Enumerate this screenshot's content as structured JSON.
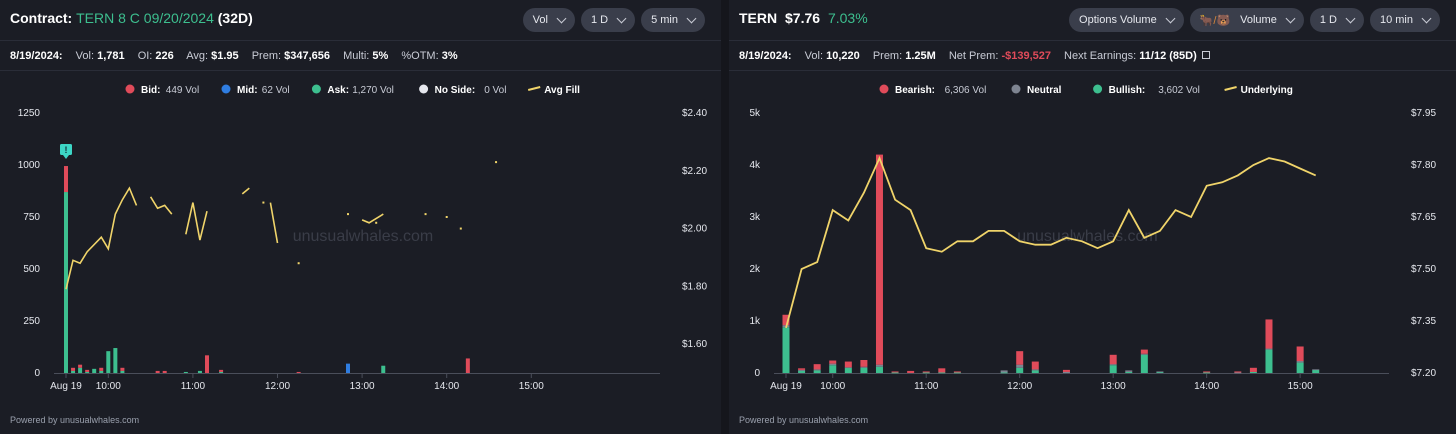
{
  "left": {
    "title_prefix": "Contract:",
    "title_contract": "TERN 8 C 09/20/2024",
    "title_dte": "(32D)",
    "buttons": [
      "Vol",
      "1 D",
      "5 min"
    ],
    "stats": {
      "date": "8/19/2024:",
      "vol_label": "Vol:",
      "vol": "1,781",
      "oi_label": "OI:",
      "oi": "226",
      "avg_label": "Avg:",
      "avg": "$1.95",
      "prem_label": "Prem:",
      "prem": "$347,656",
      "multi_label": "Multi:",
      "multi": "5%",
      "otm_label": "%OTM:",
      "otm": "3%"
    },
    "powered": "Powered by unusualwhales.com",
    "watermark": "unusualwhales.com"
  },
  "right": {
    "title_ticker": "TERN",
    "title_price": "$7.76",
    "title_change": "7.03%",
    "buttons": [
      {
        "label": "Options Volume",
        "icon": ""
      },
      {
        "label": "Volume",
        "icon": "bull-bear-icon",
        "icon_text": "🐂/🐻"
      },
      {
        "label": "1 D",
        "icon": ""
      },
      {
        "label": "10 min",
        "icon": ""
      }
    ],
    "stats": {
      "date": "8/19/2024:",
      "vol_label": "Vol:",
      "vol": "10,220",
      "prem_label": "Prem:",
      "prem": "1.25M",
      "netprem_label": "Net Prem:",
      "netprem": "-$139,527",
      "earnings_label": "Next Earnings:",
      "earnings": "11/12 (85D)"
    },
    "powered": "Powered by unusualwhales.com",
    "watermark": "unusualwhales.com"
  },
  "chart_data": [
    {
      "type": "bar",
      "stacked": true,
      "legend": [
        {
          "name": "Bid",
          "value": "449 Vol",
          "color": "#e04b5a"
        },
        {
          "name": "Mid",
          "value": "62 Vol",
          "color": "#2f7de1"
        },
        {
          "name": "Ask",
          "value": "1,270 Vol",
          "color": "#3dbf8f"
        },
        {
          "name": "No Side",
          "value": "0 Vol",
          "color": "#e6e8ee"
        },
        {
          "name": "Avg Fill",
          "value": "",
          "color": "#f0d46a",
          "line": true
        }
      ],
      "x_ticks": [
        "Aug 19",
        "10:00",
        "11:00",
        "12:00",
        "13:00",
        "14:00",
        "15:00"
      ],
      "x_tick_minutes": [
        0,
        30,
        90,
        150,
        210,
        270,
        330
      ],
      "y_left": {
        "ticks": [
          "0",
          "250",
          "500",
          "750",
          "1000",
          "1250"
        ],
        "range": [
          0,
          1250
        ]
      },
      "y_right": {
        "ticks": [
          "$1.60",
          "$1.80",
          "$2.00",
          "$2.20",
          "$2.40"
        ],
        "range": [
          1.5,
          2.4
        ]
      },
      "bar_series": [
        "Ask",
        "Mid",
        "Bid"
      ],
      "bars": [
        {
          "m": 0,
          "Ask": 870,
          "Mid": 0,
          "Bid": 125
        },
        {
          "m": 5,
          "Ask": 10,
          "Mid": 0,
          "Bid": 15
        },
        {
          "m": 10,
          "Ask": 25,
          "Mid": 0,
          "Bid": 15
        },
        {
          "m": 15,
          "Ask": 5,
          "Mid": 0,
          "Bid": 10
        },
        {
          "m": 20,
          "Ask": 20,
          "Mid": 0,
          "Bid": 0
        },
        {
          "m": 25,
          "Ask": 10,
          "Mid": 0,
          "Bid": 15
        },
        {
          "m": 30,
          "Ask": 105,
          "Mid": 0,
          "Bid": 0
        },
        {
          "m": 35,
          "Ask": 120,
          "Mid": 0,
          "Bid": 0
        },
        {
          "m": 40,
          "Ask": 10,
          "Mid": 0,
          "Bid": 15
        },
        {
          "m": 65,
          "Ask": 0,
          "Mid": 0,
          "Bid": 10
        },
        {
          "m": 70,
          "Ask": 0,
          "Mid": 0,
          "Bid": 10
        },
        {
          "m": 85,
          "Ask": 5,
          "Mid": 0,
          "Bid": 0
        },
        {
          "m": 95,
          "Ask": 10,
          "Mid": 0,
          "Bid": 0
        },
        {
          "m": 100,
          "Ask": 0,
          "Mid": 0,
          "Bid": 85
        },
        {
          "m": 110,
          "Ask": 5,
          "Mid": 0,
          "Bid": 10
        },
        {
          "m": 165,
          "Ask": 0,
          "Mid": 0,
          "Bid": 5
        },
        {
          "m": 200,
          "Ask": 0,
          "Mid": 45,
          "Bid": 0
        },
        {
          "m": 225,
          "Ask": 35,
          "Mid": 0,
          "Bid": 0
        },
        {
          "m": 285,
          "Ask": 0,
          "Mid": 0,
          "Bid": 70
        }
      ],
      "avg_fill_segments": [
        [
          [
            0,
            1.79
          ],
          [
            5,
            1.89
          ],
          [
            10,
            1.88
          ],
          [
            15,
            1.92
          ],
          [
            25,
            1.97
          ],
          [
            30,
            1.93
          ],
          [
            35,
            2.05
          ],
          [
            40,
            2.1
          ],
          [
            45,
            2.14
          ],
          [
            50,
            2.08
          ]
        ],
        [
          [
            60,
            2.11
          ],
          [
            65,
            2.07
          ],
          [
            70,
            2.08
          ],
          [
            75,
            2.05
          ]
        ],
        [
          [
            85,
            1.98
          ],
          [
            90,
            2.09
          ],
          [
            95,
            1.96
          ],
          [
            100,
            2.06
          ]
        ],
        [
          [
            125,
            2.12
          ],
          [
            130,
            2.14
          ]
        ],
        [
          [
            145,
            2.09
          ],
          [
            150,
            1.95
          ]
        ]
      ],
      "avg_fill_points": [
        [
          140,
          2.09
        ],
        [
          165,
          1.88
        ],
        [
          200,
          2.05
        ],
        [
          220,
          2.02
        ],
        [
          255,
          2.05
        ],
        [
          270,
          2.04
        ],
        [
          280,
          2.0
        ],
        [
          305,
          2.23
        ]
      ],
      "avg_fill_short": [
        [
          210,
          2.03
        ],
        [
          215,
          2.02
        ],
        [
          225,
          2.05
        ]
      ]
    },
    {
      "type": "bar",
      "stacked": true,
      "legend": [
        {
          "name": "Bearish",
          "value": "6,306 Vol",
          "color": "#e04b5a"
        },
        {
          "name": "Neutral",
          "value": "",
          "color": "#7e8491"
        },
        {
          "name": "Bullish",
          "value": "3,602 Vol",
          "color": "#3dbf8f"
        },
        {
          "name": "Underlying",
          "value": "",
          "color": "#f0d46a",
          "line": true
        }
      ],
      "x_ticks": [
        "Aug 19",
        "10:00",
        "11:00",
        "12:00",
        "13:00",
        "14:00",
        "15:00"
      ],
      "x_tick_minutes": [
        0,
        30,
        90,
        150,
        210,
        270,
        330
      ],
      "y_left": {
        "ticks": [
          "0",
          "1k",
          "2k",
          "3k",
          "4k",
          "5k"
        ],
        "range": [
          0,
          5000
        ]
      },
      "y_right": {
        "ticks": [
          "$7.20",
          "$7.35",
          "$7.50",
          "$7.65",
          "$7.80",
          "$7.95"
        ],
        "range": [
          7.2,
          7.95
        ]
      },
      "bar_series": [
        "Bullish",
        "Neutral",
        "Bearish"
      ],
      "bars": [
        {
          "m": 0,
          "Bullish": 880,
          "Neutral": 40,
          "Bearish": 200
        },
        {
          "m": 10,
          "Bullish": 40,
          "Neutral": 20,
          "Bearish": 30
        },
        {
          "m": 20,
          "Bullish": 50,
          "Neutral": 20,
          "Bearish": 100
        },
        {
          "m": 30,
          "Bullish": 150,
          "Neutral": 30,
          "Bearish": 60
        },
        {
          "m": 40,
          "Bullish": 100,
          "Neutral": 10,
          "Bearish": 110
        },
        {
          "m": 50,
          "Bullish": 100,
          "Neutral": 20,
          "Bearish": 130
        },
        {
          "m": 60,
          "Bullish": 120,
          "Neutral": 40,
          "Bearish": 4040
        },
        {
          "m": 70,
          "Bullish": 10,
          "Neutral": 0,
          "Bearish": 20
        },
        {
          "m": 80,
          "Bullish": 0,
          "Neutral": 0,
          "Bearish": 40
        },
        {
          "m": 90,
          "Bullish": 10,
          "Neutral": 0,
          "Bearish": 20
        },
        {
          "m": 100,
          "Bullish": 10,
          "Neutral": 0,
          "Bearish": 80
        },
        {
          "m": 110,
          "Bullish": 10,
          "Neutral": 0,
          "Bearish": 20
        },
        {
          "m": 140,
          "Bullish": 10,
          "Neutral": 40,
          "Bearish": 0
        },
        {
          "m": 150,
          "Bullish": 100,
          "Neutral": 60,
          "Bearish": 260
        },
        {
          "m": 160,
          "Bullish": 50,
          "Neutral": 20,
          "Bearish": 150
        },
        {
          "m": 180,
          "Bullish": 0,
          "Neutral": 20,
          "Bearish": 40
        },
        {
          "m": 210,
          "Bullish": 150,
          "Neutral": 20,
          "Bearish": 180
        },
        {
          "m": 220,
          "Bullish": 20,
          "Neutral": 30,
          "Bearish": 0
        },
        {
          "m": 230,
          "Bullish": 350,
          "Neutral": 20,
          "Bearish": 80
        },
        {
          "m": 240,
          "Bullish": 20,
          "Neutral": 10,
          "Bearish": 0
        },
        {
          "m": 270,
          "Bullish": 10,
          "Neutral": 0,
          "Bearish": 20
        },
        {
          "m": 290,
          "Bullish": 0,
          "Neutral": 10,
          "Bearish": 20
        },
        {
          "m": 300,
          "Bullish": 20,
          "Neutral": 0,
          "Bearish": 80
        },
        {
          "m": 310,
          "Bullish": 450,
          "Neutral": 20,
          "Bearish": 560
        },
        {
          "m": 330,
          "Bullish": 200,
          "Neutral": 30,
          "Bearish": 280
        },
        {
          "m": 340,
          "Bullish": 60,
          "Neutral": 10,
          "Bearish": 0
        }
      ],
      "underlying": [
        [
          0,
          7.33
        ],
        [
          10,
          7.5
        ],
        [
          20,
          7.52
        ],
        [
          30,
          7.67
        ],
        [
          40,
          7.64
        ],
        [
          50,
          7.72
        ],
        [
          60,
          7.82
        ],
        [
          70,
          7.7
        ],
        [
          80,
          7.67
        ],
        [
          90,
          7.56
        ],
        [
          100,
          7.55
        ],
        [
          110,
          7.58
        ],
        [
          120,
          7.58
        ],
        [
          130,
          7.61
        ],
        [
          140,
          7.61
        ],
        [
          150,
          7.58
        ],
        [
          160,
          7.57
        ],
        [
          170,
          7.57
        ],
        [
          180,
          7.59
        ],
        [
          190,
          7.58
        ],
        [
          200,
          7.56
        ],
        [
          210,
          7.58
        ],
        [
          220,
          7.67
        ],
        [
          230,
          7.59
        ],
        [
          240,
          7.61
        ],
        [
          250,
          7.67
        ],
        [
          260,
          7.65
        ],
        [
          270,
          7.74
        ],
        [
          280,
          7.75
        ],
        [
          290,
          7.77
        ],
        [
          300,
          7.8
        ],
        [
          310,
          7.82
        ],
        [
          320,
          7.81
        ],
        [
          330,
          7.79
        ],
        [
          340,
          7.77
        ]
      ]
    }
  ]
}
